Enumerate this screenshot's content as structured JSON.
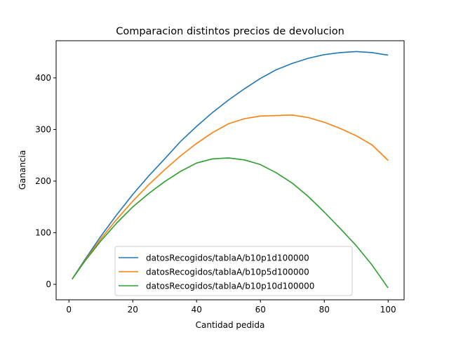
{
  "chart_data": {
    "type": "line",
    "title": "Comparacion distintos precios de devolucion",
    "xlabel": "Cantidad pedida",
    "ylabel": "Ganancia",
    "xlim": [
      -4,
      105
    ],
    "ylim": [
      -30,
      472
    ],
    "xticks": [
      0,
      20,
      40,
      60,
      80,
      100
    ],
    "yticks": [
      0,
      100,
      200,
      300,
      400
    ],
    "grid": false,
    "legend_position": "lower-center",
    "series": [
      {
        "name": "datosRecogidos/tablaA/b10p1d100000",
        "color": "#1f77b4",
        "points": [
          [
            1,
            10
          ],
          [
            5,
            48
          ],
          [
            10,
            93
          ],
          [
            15,
            135
          ],
          [
            20,
            174
          ],
          [
            25,
            210
          ],
          [
            30,
            243
          ],
          [
            35,
            277
          ],
          [
            40,
            306
          ],
          [
            45,
            333
          ],
          [
            50,
            357
          ],
          [
            55,
            379
          ],
          [
            60,
            399
          ],
          [
            65,
            416
          ],
          [
            70,
            428
          ],
          [
            75,
            438
          ],
          [
            80,
            445
          ],
          [
            85,
            449
          ],
          [
            90,
            451
          ],
          [
            95,
            449
          ],
          [
            100,
            444
          ]
        ]
      },
      {
        "name": "datosRecogidos/tablaA/b10p5d100000",
        "color": "#ff7f0e",
        "points": [
          [
            1,
            10
          ],
          [
            5,
            46
          ],
          [
            10,
            88
          ],
          [
            15,
            126
          ],
          [
            20,
            161
          ],
          [
            25,
            193
          ],
          [
            30,
            222
          ],
          [
            35,
            249
          ],
          [
            40,
            273
          ],
          [
            45,
            294
          ],
          [
            50,
            311
          ],
          [
            55,
            321
          ],
          [
            60,
            326
          ],
          [
            65,
            327
          ],
          [
            70,
            328
          ],
          [
            75,
            323
          ],
          [
            80,
            314
          ],
          [
            85,
            302
          ],
          [
            90,
            288
          ],
          [
            95,
            270
          ],
          [
            100,
            240
          ]
        ]
      },
      {
        "name": "datosRecogidos/tablaA/b10p10d100000",
        "color": "#2ca02c",
        "points": [
          [
            1,
            10
          ],
          [
            5,
            45
          ],
          [
            10,
            84
          ],
          [
            15,
            119
          ],
          [
            20,
            150
          ],
          [
            25,
            176
          ],
          [
            30,
            199
          ],
          [
            35,
            219
          ],
          [
            40,
            235
          ],
          [
            45,
            243
          ],
          [
            50,
            245
          ],
          [
            55,
            241
          ],
          [
            60,
            232
          ],
          [
            65,
            216
          ],
          [
            70,
            196
          ],
          [
            75,
            170
          ],
          [
            80,
            140
          ],
          [
            85,
            108
          ],
          [
            90,
            75
          ],
          [
            95,
            37
          ],
          [
            100,
            -7
          ]
        ]
      }
    ]
  }
}
